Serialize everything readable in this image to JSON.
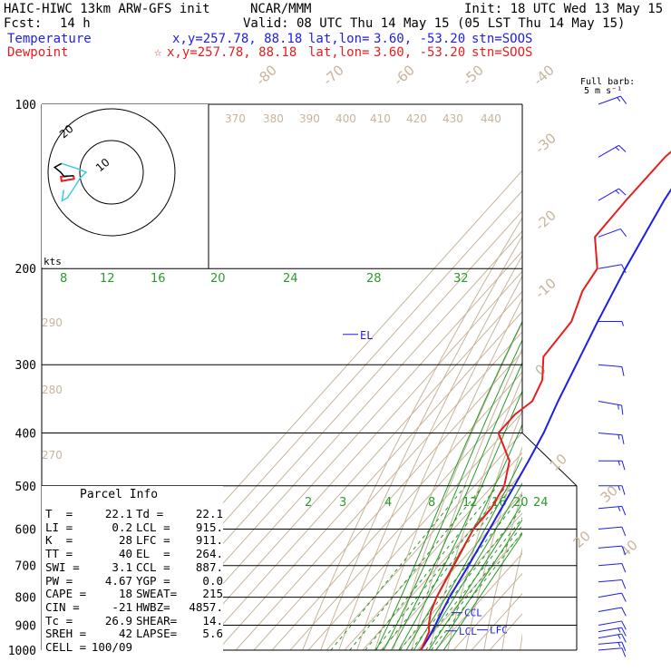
{
  "header": {
    "model": "HAIC-HIWC 13km ARW-GFS init",
    "center": "NCAR/MMM",
    "init": "Init: 18 UTC Wed 13 May 15",
    "fcst_label": "Fcst:",
    "fcst_value": "14 h",
    "valid": "Valid: 08 UTC Thu 14 May 15 (05 LST Thu 14 May 15)",
    "temperature_label": "Temperature",
    "dewpoint_label": "Dewpoint",
    "temp_xy": "x,y=257.78, 88.18",
    "dew_xy": "x,y=257.78, 88.18",
    "latlon_label": "lat,lon=",
    "latlon_value": "3.60, -53.20",
    "stn": "stn=SOOS",
    "barb_legend_1": "Full barb:",
    "barb_legend_2": "5 m s⁻¹"
  },
  "colors": {
    "temperature": "#1e1ee6",
    "dewpoint": "#e61e1e",
    "isotherm": "#c8b49a",
    "dry_adiabat": "#c8b49a",
    "moist_adiabat": "#2a9a2a",
    "mixing_ratio": "#2a9a2a",
    "winds": "#1e1ee6",
    "hodo_black": "#000000",
    "hodo_cyan": "#3cc8e6"
  },
  "chart_data": {
    "type": "skew-t log-p sounding",
    "pressure_axis_hPa": [
      100,
      200,
      300,
      400,
      500,
      600,
      700,
      800,
      900,
      1000
    ],
    "pressure_range_hPa": [
      1000,
      100
    ],
    "isotherm_labels_C": [
      -80,
      -70,
      -60,
      -50,
      -40,
      -30,
      -20,
      -10,
      0,
      10,
      20,
      30,
      40
    ],
    "theta_labels_K": [
      370,
      380,
      390,
      400,
      410,
      420,
      430,
      440,
      290,
      280,
      270
    ],
    "mixing_ratio_upper_labels": [
      8,
      12,
      16,
      20,
      24,
      28,
      32
    ],
    "mixing_ratio_lower_labels": [
      2,
      3,
      4,
      8,
      12,
      16,
      20,
      24
    ],
    "temperature_profile": {
      "name": "Temperature",
      "p": [
        1000,
        950,
        925,
        900,
        850,
        800,
        700,
        600,
        500,
        450,
        400,
        350,
        300,
        250,
        200,
        150,
        125,
        100
      ],
      "t": [
        22.1,
        20.2,
        19.0,
        17.6,
        14.7,
        11.6,
        6.4,
        -0.1,
        -7.9,
        -12.5,
        -18.0,
        -25.8,
        -33.9,
        -43.5,
        -54.5,
        -67.0,
        -73.0,
        -76.5
      ]
    },
    "dewpoint_profile": {
      "name": "Dewpoint",
      "p": [
        1000,
        950,
        925,
        900,
        850,
        800,
        700,
        600,
        550,
        500,
        450,
        400,
        370,
        350,
        320,
        290,
        250,
        220,
        200,
        175,
        150,
        125,
        100
      ],
      "td": [
        22.1,
        19.0,
        17.5,
        14.0,
        8.5,
        4.5,
        -2.0,
        -9.0,
        -9.5,
        -13.5,
        -23.0,
        -43.0,
        -43.0,
        -40.0,
        -45.0,
        -56.0,
        -58.0,
        -67.0,
        -70.0,
        -87.0,
        -88.0,
        -88.0,
        -80.0
      ]
    },
    "annotations": [
      {
        "label": "EL",
        "p": 264
      },
      {
        "label": "CCL",
        "p": 887
      },
      {
        "label": "LCL",
        "p": 915
      },
      {
        "label": "LFC",
        "p": 911
      }
    ],
    "wind_profile": {
      "units": "kts",
      "p": [
        1000,
        975,
        950,
        925,
        900,
        850,
        800,
        750,
        700,
        650,
        600,
        550,
        500,
        450,
        400,
        350,
        300,
        250,
        200,
        175,
        150,
        125,
        100
      ],
      "dir": [
        85,
        85,
        80,
        80,
        80,
        80,
        80,
        85,
        85,
        85,
        85,
        85,
        90,
        90,
        95,
        100,
        95,
        90,
        80,
        70,
        60,
        60,
        70
      ],
      "spd": [
        14,
        16,
        16,
        15,
        14,
        12,
        12,
        12,
        12,
        14,
        14,
        15,
        16,
        16,
        18,
        16,
        10,
        8,
        10,
        12,
        16,
        18,
        16
      ]
    },
    "hodograph": {
      "units": "kts",
      "ring_labels": [
        "10",
        "20"
      ],
      "u_low": [
        14,
        16,
        15,
        14,
        12
      ],
      "v_low": [
        -1,
        0,
        1,
        2,
        3
      ]
    }
  },
  "parcel_info": {
    "title": "Parcel Info",
    "rows": [
      [
        "T  =",
        "22.1",
        "Td =",
        "22.1"
      ],
      [
        "LI =",
        "0.2",
        "LCL =",
        "915."
      ],
      [
        "K  =",
        "28",
        "LFC =",
        "911."
      ],
      [
        "TT =",
        "40",
        "EL  =",
        "264."
      ],
      [
        "SWI =",
        "3.1",
        "CCL =",
        "887."
      ],
      [
        "PW =",
        "4.67",
        "YGP =",
        "0.0"
      ],
      [
        "CAPE =",
        "18",
        "SWEAT=",
        "215"
      ],
      [
        "CIN =",
        "-21",
        "HWBZ=",
        "4857."
      ],
      [
        "Tc =",
        "26.9",
        "SHEAR=",
        "14."
      ],
      [
        "SREH =",
        "42",
        "LAPSE=",
        "5.6"
      ],
      [
        "CELL =",
        "100/09",
        "",
        ""
      ]
    ]
  }
}
